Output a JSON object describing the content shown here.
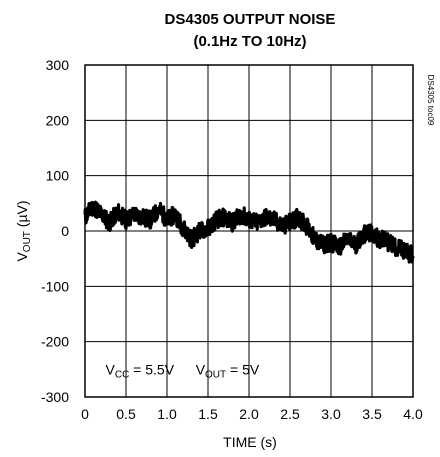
{
  "chart_data": {
    "type": "line",
    "title_line1": "DS4305 OUTPUT NOISE",
    "title_line2": "(0.1Hz TO 10Hz)",
    "xlabel": "TIME (s)",
    "ylabel": "V",
    "ylabel_sub": "OUT",
    "ylabel_unit": " (µV)",
    "xlim": [
      0,
      4.0
    ],
    "ylim": [
      -300,
      300
    ],
    "x_ticks": [
      0,
      0.5,
      1.0,
      1.5,
      2.0,
      2.5,
      3.0,
      3.5,
      4.0
    ],
    "x_tick_labels": [
      "0",
      "0.5",
      "1.0",
      "1.5",
      "2.0",
      "2.5",
      "3.0",
      "3.5",
      "4.0"
    ],
    "y_ticks": [
      300,
      200,
      100,
      0,
      -100,
      -200,
      -300
    ],
    "y_tick_labels": [
      "300",
      "200",
      "100",
      "0",
      "-100",
      "-200",
      "-300"
    ],
    "grid": true,
    "series": [
      {
        "x": [
          0,
          0.1,
          0.2,
          0.3,
          0.4,
          0.5,
          0.6,
          0.7,
          0.8,
          0.9,
          1.0,
          1.1,
          1.2,
          1.3,
          1.4,
          1.5,
          1.6,
          1.7,
          1.8,
          1.9,
          2.0,
          2.1,
          2.2,
          2.3,
          2.4,
          2.5,
          2.6,
          2.7,
          2.8,
          2.9,
          3.0,
          3.1,
          3.2,
          3.3,
          3.4,
          3.5,
          3.6,
          3.7,
          3.8,
          3.9,
          4.0
        ],
        "y": [
          25,
          45,
          30,
          15,
          35,
          20,
          30,
          25,
          20,
          40,
          20,
          30,
          5,
          -15,
          0,
          5,
          20,
          25,
          15,
          30,
          20,
          15,
          25,
          20,
          10,
          15,
          25,
          10,
          -15,
          -25,
          -20,
          -30,
          -15,
          -25,
          -5,
          -5,
          -15,
          -20,
          -30,
          -35,
          -45
        ]
      }
    ],
    "annotations": [
      {
        "main": "V",
        "sub": "CC",
        "rest": " = 5.5V",
        "x": 0.25,
        "y": -250
      },
      {
        "main": "V",
        "sub": "OUT",
        "rest": " = 5V",
        "x": 1.35,
        "y": -250
      }
    ],
    "figure_id": "DS4305 toc09",
    "line_color": "#000000"
  }
}
